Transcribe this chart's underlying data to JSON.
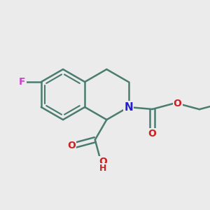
{
  "background_color": "#ebebeb",
  "bond_color": "#4a7c6f",
  "bond_width": 1.8,
  "atom_colors": {
    "F": "#cc44cc",
    "N": "#2222cc",
    "O": "#cc2222",
    "H": "#cc2222",
    "C": "#4a7c6f"
  },
  "font_size": 10,
  "fig_width": 3.0,
  "fig_height": 3.0,
  "dpi": 100
}
